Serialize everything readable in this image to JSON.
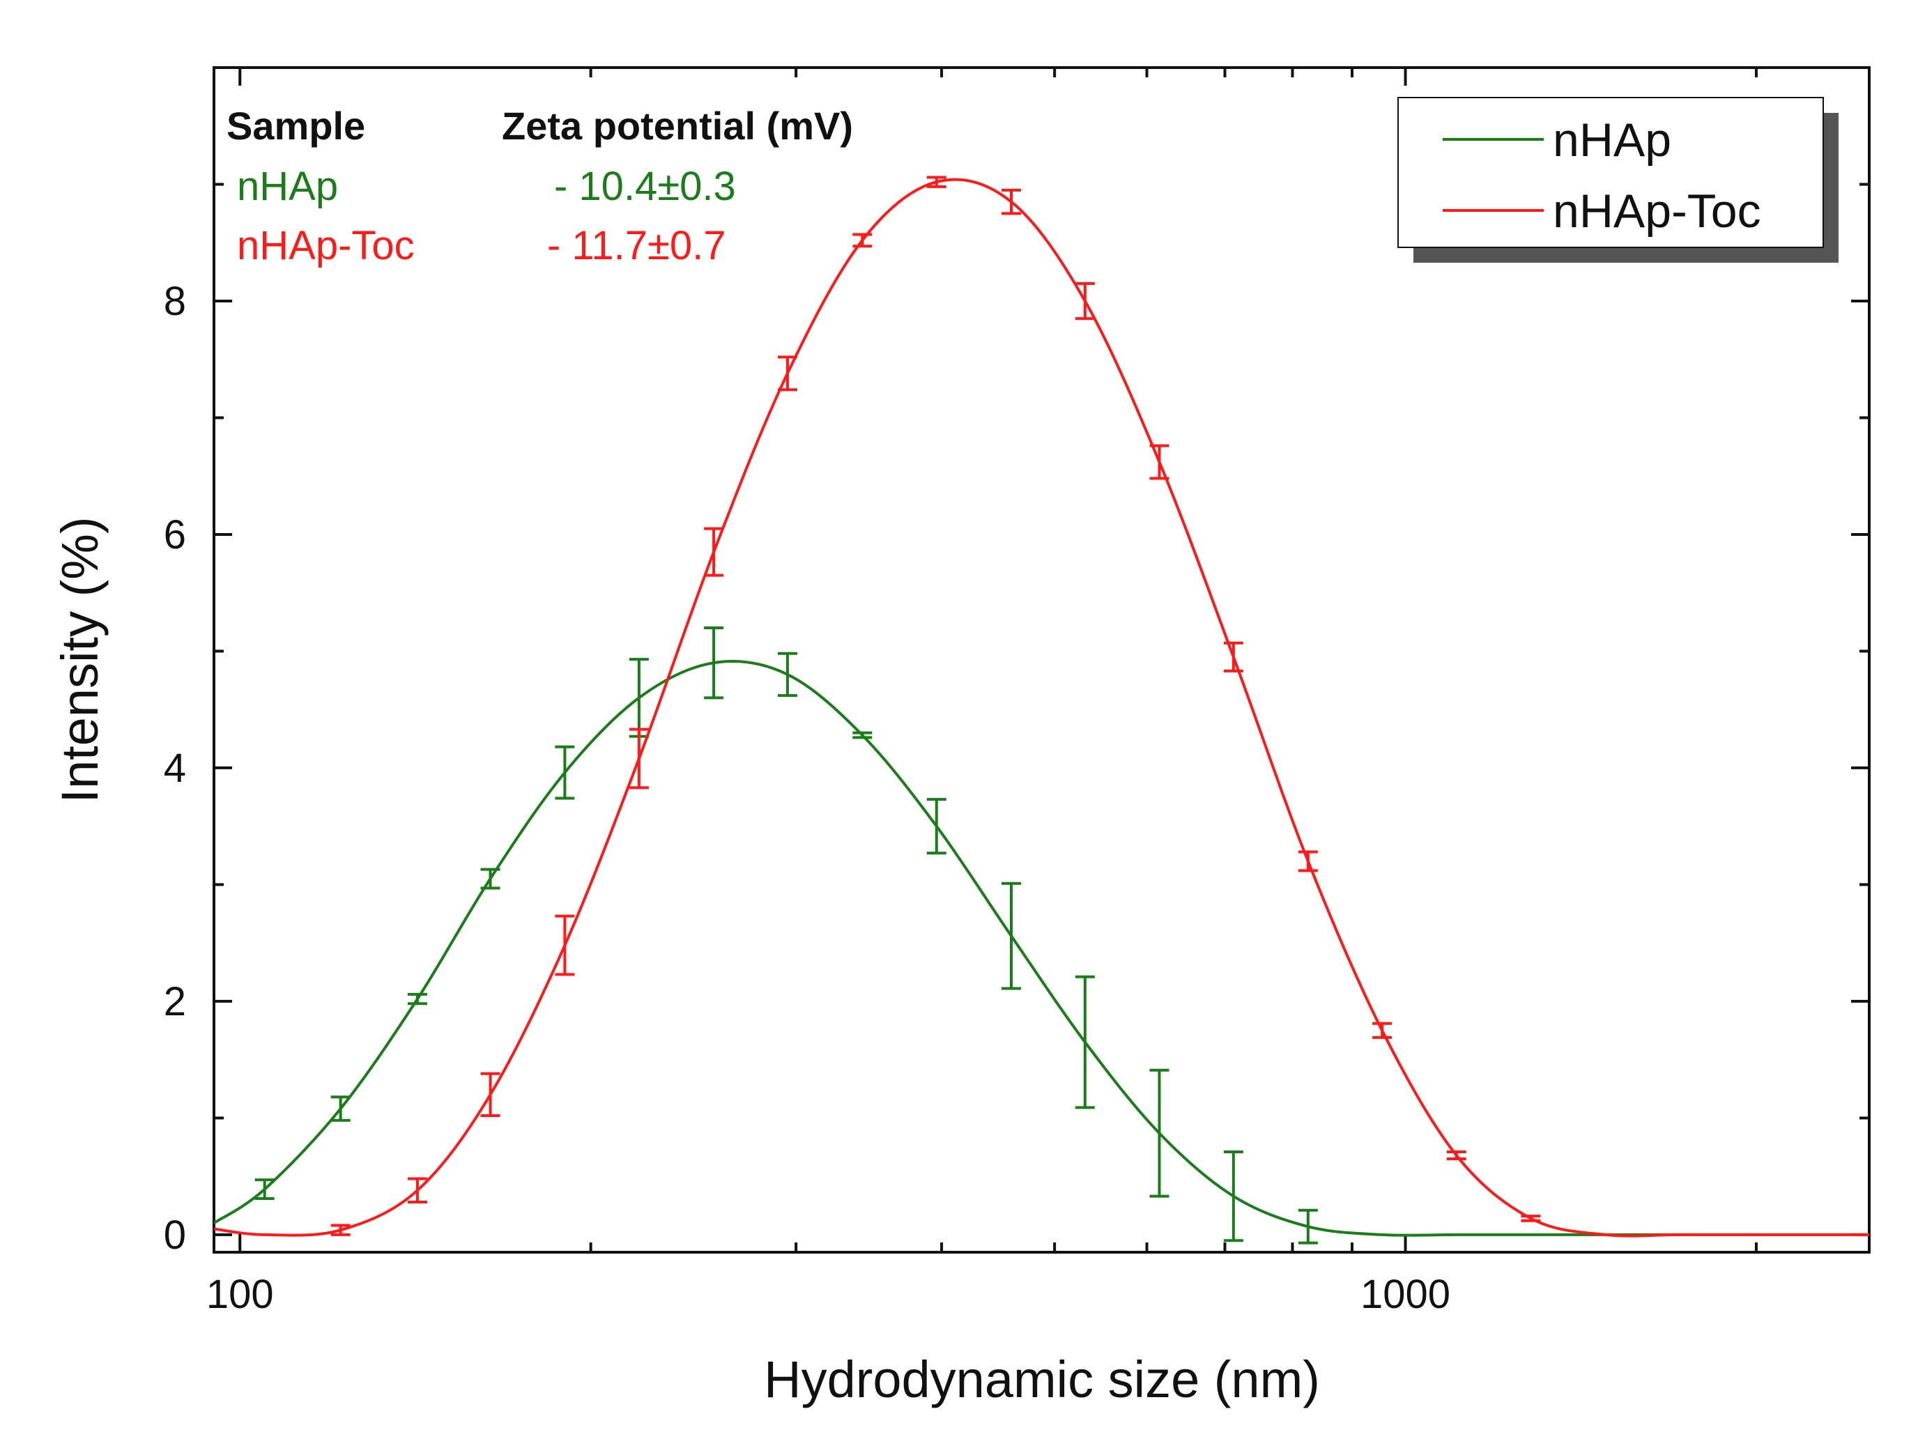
{
  "chart_data": {
    "type": "line",
    "xscale": "log",
    "xlabel": "Hydrodynamic size (nm)",
    "ylabel": "Intensity (%)",
    "xlim": [
      95,
      2500
    ],
    "ylim": [
      -0.15,
      10
    ],
    "xticks": [
      {
        "value": 100,
        "label": "100"
      },
      {
        "value": 1000,
        "label": "1000"
      }
    ],
    "yticks": [
      {
        "value": 0,
        "label": "0"
      },
      {
        "value": 2,
        "label": "2"
      },
      {
        "value": 4,
        "label": "4"
      },
      {
        "value": 6,
        "label": "6"
      },
      {
        "value": 8,
        "label": "8"
      }
    ],
    "series": [
      {
        "name": "nHAp",
        "color": "#1a7d1a",
        "x": [
          95,
          105,
          122,
          142,
          164,
          190,
          220,
          255,
          295,
          342,
          396,
          459,
          531,
          615,
          712,
          825,
          955,
          1106,
          1281,
          1484,
          1718,
          1990,
          2305,
          2500
        ],
        "y": [
          0.1,
          0.39,
          1.08,
          2.02,
          3.05,
          3.96,
          4.6,
          4.9,
          4.8,
          4.28,
          3.5,
          2.56,
          1.65,
          0.87,
          0.33,
          0.07,
          0.0,
          0.0,
          0.0,
          0.0,
          0.0,
          0.0,
          0.0,
          0.0
        ],
        "error": [
          null,
          0.08,
          0.1,
          0.04,
          0.08,
          0.22,
          0.33,
          0.3,
          0.18,
          0.02,
          0.23,
          0.45,
          0.56,
          0.54,
          0.38,
          0.14,
          null,
          null,
          null,
          null,
          null,
          null,
          null,
          null
        ]
      },
      {
        "name": "nHAp-Toc",
        "color": "#ff1a1a",
        "x": [
          95,
          105,
          122,
          142,
          164,
          190,
          220,
          255,
          295,
          342,
          396,
          459,
          531,
          615,
          712,
          825,
          955,
          1106,
          1281,
          1484,
          1718,
          1990,
          2305,
          2500
        ],
        "y": [
          0.05,
          0.0,
          0.04,
          0.38,
          1.2,
          2.48,
          4.08,
          5.85,
          7.38,
          8.52,
          9.02,
          8.85,
          8.0,
          6.62,
          4.95,
          3.2,
          1.75,
          0.68,
          0.14,
          0.0,
          0.0,
          0.0,
          0.0,
          0.0
        ],
        "error": [
          null,
          null,
          0.04,
          0.1,
          0.18,
          0.25,
          0.25,
          0.2,
          0.14,
          0.05,
          0.04,
          0.1,
          0.15,
          0.14,
          0.12,
          0.08,
          0.06,
          0.03,
          0.02,
          null,
          null,
          null,
          null,
          null
        ]
      }
    ],
    "legend": {
      "position": "top-right",
      "entries": [
        "nHAp",
        "nHAp-Toc"
      ]
    },
    "annotation_table": {
      "position": "top-left",
      "headers": [
        "Sample",
        "Zeta potential (mV)"
      ],
      "rows": [
        {
          "sample": "nHAp",
          "zeta": "- 10.4±0.3",
          "color": "#1a7d1a"
        },
        {
          "sample": "nHAp-Toc",
          "zeta": "- 11.7±0.7",
          "color": "#ff1a1a"
        }
      ]
    }
  }
}
